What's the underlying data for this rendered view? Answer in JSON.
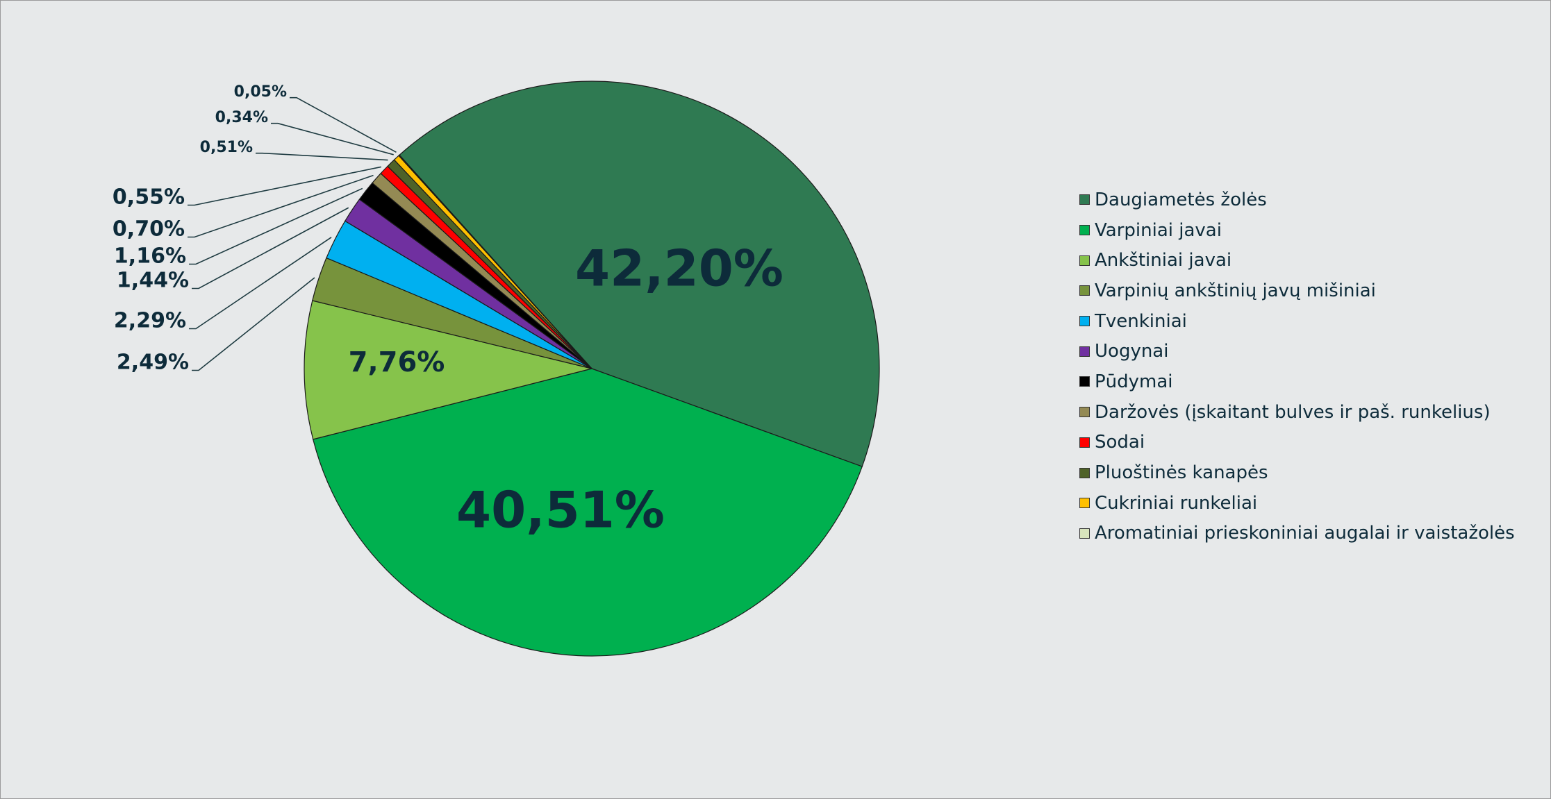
{
  "chart_data": {
    "type": "pie",
    "title": "",
    "legend_position": "right",
    "start_direction": "clockwise",
    "slices": [
      {
        "name": "Daugiametės žolės",
        "value": 42.2,
        "label": "42,20%",
        "color": "#2f7a52"
      },
      {
        "name": "Varpiniai javai",
        "value": 40.51,
        "label": "40,51%",
        "color": "#00b04f"
      },
      {
        "name": "Ankštiniai javai",
        "value": 7.76,
        "label": "7,76%",
        "color": "#86c34b"
      },
      {
        "name": "Varpinių ankštinių javų mišiniai",
        "value": 2.49,
        "label": "2,49%",
        "color": "#77933c"
      },
      {
        "name": "Tvenkiniai",
        "value": 2.29,
        "label": "2,29%",
        "color": "#00b0f0"
      },
      {
        "name": "Uogynai",
        "value": 1.44,
        "label": "1,44%",
        "color": "#7030a0"
      },
      {
        "name": "Pūdymai",
        "value": 1.16,
        "label": "1,16%",
        "color": "#000000"
      },
      {
        "name": "Daržovės (įskaitant bulves ir paš. runkelius)",
        "value": 0.7,
        "label": "0,70%",
        "color": "#948a54"
      },
      {
        "name": "Sodai",
        "value": 0.55,
        "label": "0,55%",
        "color": "#ff0000"
      },
      {
        "name": "Pluoštinės kanapės",
        "value": 0.51,
        "label": "0,51%",
        "color": "#4f6228"
      },
      {
        "name": "Cukriniai runkeliai",
        "value": 0.34,
        "label": "0,34%",
        "color": "#ffc000"
      },
      {
        "name": "Aromatiniai prieskoniniai augalai ir vaistažolės",
        "value": 0.05,
        "label": "0,05%",
        "color": "#d8e4bc"
      }
    ]
  },
  "label_color": "#0d2b3a"
}
